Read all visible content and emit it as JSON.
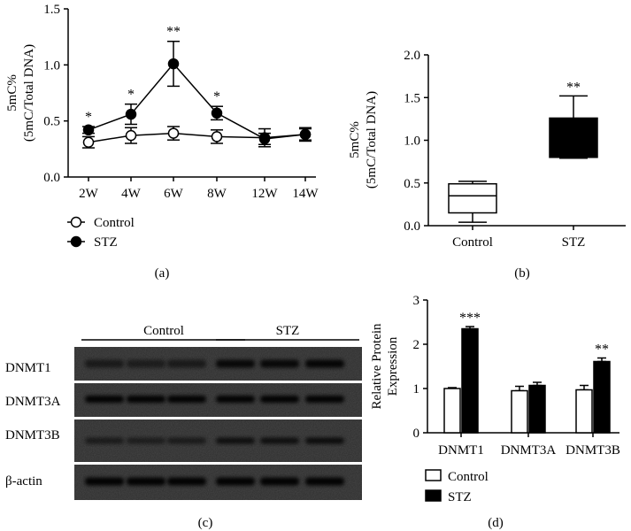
{
  "chart_data": [
    {
      "panel": "(a)",
      "type": "line",
      "categories": [
        "2W",
        "4W",
        "6W",
        "8W",
        "12W",
        "14W"
      ],
      "ylabel": [
        "5mC%",
        "(5mC/Total DNA)"
      ],
      "ylim": [
        0,
        1.5
      ],
      "yticks": [
        "0.0",
        "0.5",
        "1.0",
        "1.5"
      ],
      "legend_position": "bottom-left",
      "series": [
        {
          "name": "Control",
          "marker": "open-circle",
          "values": [
            0.31,
            0.37,
            0.39,
            0.36,
            0.35,
            0.38
          ],
          "errors": [
            0.05,
            0.07,
            0.06,
            0.06,
            0.08,
            0.06
          ]
        },
        {
          "name": "STZ",
          "marker": "filled-circle",
          "values": [
            0.42,
            0.56,
            1.01,
            0.57,
            0.34,
            0.38
          ],
          "errors": [
            0.03,
            0.09,
            0.2,
            0.06,
            0.05,
            0.05
          ]
        }
      ],
      "annotations": [
        "*",
        "*",
        "**",
        "*",
        "",
        ""
      ]
    },
    {
      "panel": "(b)",
      "type": "box",
      "categories": [
        "Control",
        "STZ"
      ],
      "ylabel": [
        "5mC%",
        "(5mC/Total DNA)"
      ],
      "ylim": [
        0,
        2.0
      ],
      "yticks": [
        "0.0",
        "0.5",
        "1.0",
        "1.5",
        "2.0"
      ],
      "boxes": [
        {
          "name": "Control",
          "min": 0.04,
          "q1": 0.15,
          "median": 0.35,
          "q3": 0.49,
          "max": 0.52,
          "fill": "#ffffff"
        },
        {
          "name": "STZ",
          "min": 0.79,
          "q1": 0.8,
          "median": 0.81,
          "q3": 1.26,
          "max": 1.52,
          "fill": "#000000"
        }
      ],
      "annotations": [
        "",
        "**"
      ]
    },
    {
      "panel": "(c)",
      "type": "blot",
      "groups": [
        "Control",
        "STZ"
      ],
      "rows": [
        "DNMT1",
        "DNMT3A",
        "DNMT3B",
        "β-actin"
      ]
    },
    {
      "panel": "(d)",
      "type": "bar",
      "categories": [
        "DNMT1",
        "DNMT3A",
        "DNMT3B"
      ],
      "ylabel": [
        "Relative Protein",
        "Expression"
      ],
      "ylim": [
        0,
        3
      ],
      "yticks": [
        "0",
        "1",
        "2",
        "3"
      ],
      "legend_position": "bottom-left",
      "series": [
        {
          "name": "Control",
          "fill": "#ffffff",
          "values": [
            1.0,
            0.95,
            0.97
          ],
          "errors": [
            0.02,
            0.1,
            0.1
          ]
        },
        {
          "name": "STZ",
          "fill": "#000000",
          "values": [
            2.35,
            1.07,
            1.61
          ],
          "errors": [
            0.05,
            0.07,
            0.08
          ]
        }
      ],
      "annotations": [
        "***",
        "",
        "**"
      ]
    }
  ]
}
